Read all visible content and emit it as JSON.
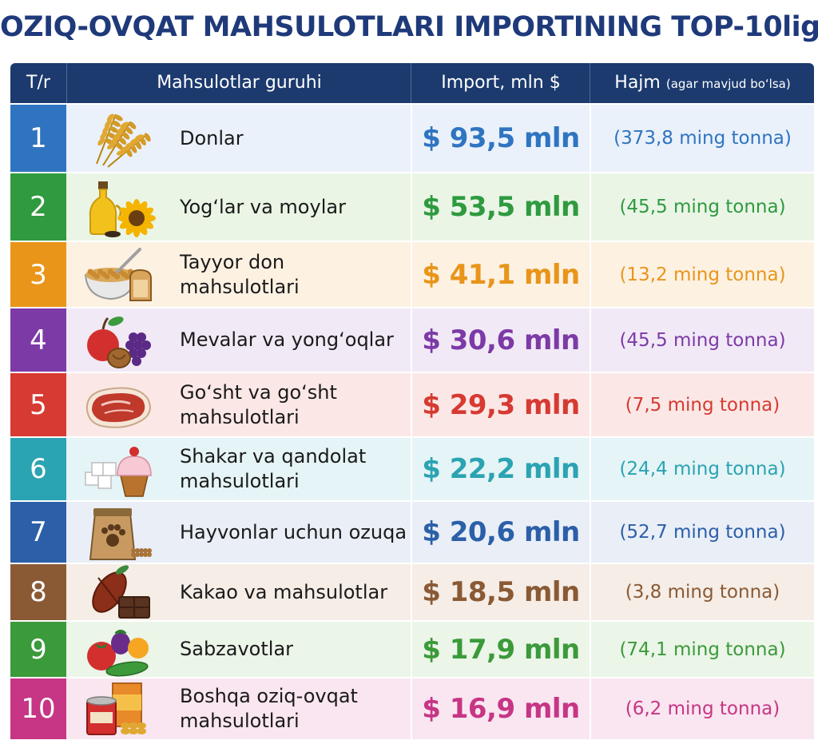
{
  "title": "OZIQ-OVQAT MAHSULOTLARI IMPORTINING TOP-10ligi",
  "header": {
    "col_rank": "T/r",
    "col_group": "Mahsulotlar guruhi",
    "col_import": "Import, mln $",
    "col_volume": "Hajm",
    "col_volume_note": "(agar mavjud bo‘lsa)"
  },
  "chart_data": {
    "type": "table",
    "title": "OZIQ-OVQAT MAHSULOTLARI IMPORTINING TOP-10ligi",
    "columns": [
      "T/r",
      "Mahsulotlar guruhi",
      "Import, mln $",
      "Hajm (agar mavjud bo‘lsa)"
    ],
    "rows": [
      {
        "rank": "1",
        "name_lines": [
          "Donlar"
        ],
        "import_text": "$ 93,5 mln",
        "import_mln_usd": 93.5,
        "volume_text": "(373,8 ming tonna)",
        "volume_thousand_t": 373.8,
        "icon": "wheat-icon",
        "color": "#2f74c0",
        "bg": "#eaf1fb"
      },
      {
        "rank": "2",
        "name_lines": [
          "Yog‘lar va moylar"
        ],
        "import_text": "$ 53,5 mln",
        "import_mln_usd": 53.5,
        "volume_text": "(45,5 ming tonna)",
        "volume_thousand_t": 45.5,
        "icon": "oil-bottle-sunflower-icon",
        "color": "#2f9a3f",
        "bg": "#eaf5e6"
      },
      {
        "rank": "3",
        "name_lines": [
          "Tayyor don",
          "mahsulotlari"
        ],
        "import_text": "$ 41,1 mln",
        "import_mln_usd": 41.1,
        "volume_text": "(13,2 ming tonna)",
        "volume_thousand_t": 13.2,
        "icon": "cereal-bowl-bread-icon",
        "color": "#e8951a",
        "bg": "#fdf1e2"
      },
      {
        "rank": "4",
        "name_lines": [
          "Mevalar va yong‘oqlar"
        ],
        "import_text": "$ 30,6 mln",
        "import_mln_usd": 30.6,
        "volume_text": "(45,5 ming tonna)",
        "volume_thousand_t": 45.5,
        "icon": "fruits-nuts-icon",
        "color": "#7c3aa6",
        "bg": "#f1e9f6"
      },
      {
        "rank": "5",
        "name_lines": [
          "Go‘sht va go‘sht",
          "mahsulotlari"
        ],
        "import_text": "$ 29,3 mln",
        "import_mln_usd": 29.3,
        "volume_text": "(7,5 ming tonna)",
        "volume_thousand_t": 7.5,
        "icon": "meat-steak-icon",
        "color": "#d63a32",
        "bg": "#fbe8e6"
      },
      {
        "rank": "6",
        "name_lines": [
          "Shakar va qandolat",
          "mahsulotlari"
        ],
        "import_text": "$ 22,2 mln",
        "import_mln_usd": 22.2,
        "volume_text": "(24,4 ming tonna)",
        "volume_thousand_t": 24.4,
        "icon": "sugar-cupcake-icon",
        "color": "#2aa3b2",
        "bg": "#e5f4f6"
      },
      {
        "rank": "7",
        "name_lines": [
          "Hayvonlar uchun ozuqa"
        ],
        "import_text": "$ 20,6 mln",
        "import_mln_usd": 20.6,
        "volume_text": "(52,7 ming tonna)",
        "volume_thousand_t": 52.7,
        "icon": "pet-food-bag-icon",
        "color": "#2b5fa8",
        "bg": "#e9eef7"
      },
      {
        "rank": "8",
        "name_lines": [
          "Kakao va mahsulotlar"
        ],
        "import_text": "$ 18,5 mln",
        "import_mln_usd": 18.5,
        "volume_text": "(3,8 ming tonna)",
        "volume_thousand_t": 3.8,
        "icon": "cocoa-chocolate-icon",
        "color": "#8a5a35",
        "bg": "#f5ede6"
      },
      {
        "rank": "9",
        "name_lines": [
          "Sabzavotlar"
        ],
        "import_text": "$ 17,9 mln",
        "import_mln_usd": 17.9,
        "volume_text": "(74,1 ming tonna)",
        "volume_thousand_t": 74.1,
        "icon": "vegetables-icon",
        "color": "#3b9a3a",
        "bg": "#ebf5e8"
      },
      {
        "rank": "10",
        "name_lines": [
          "Boshqa oziq-ovqat",
          "mahsulotlari"
        ],
        "import_text": "$ 16,9 mln",
        "import_mln_usd": 16.9,
        "volume_text": "(6,2 ming tonna)",
        "volume_thousand_t": 6.2,
        "icon": "canned-food-icon",
        "color": "#c73585",
        "bg": "#f9e6f0"
      }
    ]
  }
}
